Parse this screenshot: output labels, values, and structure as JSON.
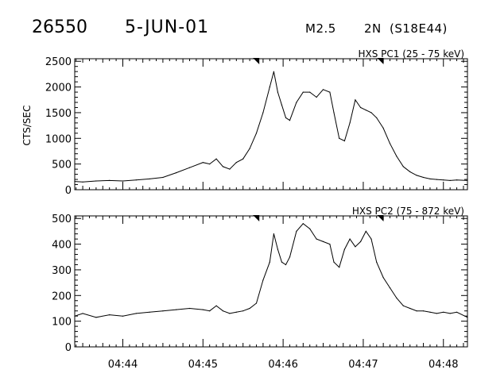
{
  "header": {
    "event_id": "26550",
    "date": "5-JUN-01",
    "flare_class": "M2.5",
    "optical_class": "2N",
    "location": "(S18E44)"
  },
  "chart_data": [
    {
      "type": "line",
      "title": "HXS PC1 (25 - 75 keV)",
      "ylabel": "CTS/SEC",
      "xlabel": "",
      "xlim": [
        "04:43:24",
        "04:48:18"
      ],
      "ylim": [
        0,
        2550
      ],
      "yticks": [
        0,
        500,
        1000,
        1500,
        2000,
        2500
      ],
      "xticks": [
        "04:44",
        "04:45",
        "04:46",
        "04:47",
        "04:48"
      ],
      "markers": [
        "04:45:41",
        "04:47:14"
      ],
      "grid": false,
      "series": [
        {
          "x": [
            "04:43:24",
            "04:43:30",
            "04:43:40",
            "04:43:50",
            "04:44:00",
            "04:44:10",
            "04:44:20",
            "04:44:30",
            "04:44:40",
            "04:44:50",
            "04:45:00",
            "04:45:05",
            "04:45:10",
            "04:45:15",
            "04:45:20",
            "04:45:25",
            "04:45:30",
            "04:45:35",
            "04:45:40",
            "04:45:45",
            "04:45:50",
            "04:45:53",
            "04:45:56",
            "04:45:59",
            "04:46:02",
            "04:46:05",
            "04:46:10",
            "04:46:15",
            "04:46:20",
            "04:46:25",
            "04:46:30",
            "04:46:35",
            "04:46:38",
            "04:46:42",
            "04:46:46",
            "04:46:50",
            "04:46:54",
            "04:46:58",
            "04:47:02",
            "04:47:06",
            "04:47:10",
            "04:47:15",
            "04:47:20",
            "04:47:25",
            "04:47:30",
            "04:47:35",
            "04:47:40",
            "04:47:45",
            "04:47:50",
            "04:47:55",
            "04:48:00",
            "04:48:05",
            "04:48:10",
            "04:48:18"
          ],
          "y": [
            160,
            150,
            170,
            180,
            170,
            190,
            210,
            240,
            330,
            430,
            530,
            500,
            600,
            450,
            400,
            530,
            600,
            800,
            1100,
            1500,
            2000,
            2300,
            1900,
            1650,
            1400,
            1350,
            1700,
            1900,
            1900,
            1800,
            1950,
            1900,
            1500,
            1000,
            950,
            1300,
            1750,
            1600,
            1550,
            1500,
            1400,
            1200,
            900,
            650,
            450,
            350,
            280,
            240,
            210,
            200,
            190,
            180,
            190,
            180
          ]
        }
      ]
    },
    {
      "type": "line",
      "title": "HXS PC2 (75 - 872 keV)",
      "ylabel": "",
      "xlabel": "",
      "xlim": [
        "04:43:24",
        "04:48:18"
      ],
      "ylim": [
        0,
        510
      ],
      "yticks": [
        0,
        100,
        200,
        300,
        400,
        500
      ],
      "xticks": [
        "04:44",
        "04:45",
        "04:46",
        "04:47",
        "04:48"
      ],
      "markers": [
        "04:45:41",
        "04:47:14"
      ],
      "grid": false,
      "series": [
        {
          "x": [
            "04:43:24",
            "04:43:30",
            "04:43:40",
            "04:43:50",
            "04:44:00",
            "04:44:10",
            "04:44:20",
            "04:44:30",
            "04:44:40",
            "04:44:50",
            "04:45:00",
            "04:45:05",
            "04:45:10",
            "04:45:15",
            "04:45:20",
            "04:45:25",
            "04:45:30",
            "04:45:35",
            "04:45:40",
            "04:45:45",
            "04:45:50",
            "04:45:53",
            "04:45:56",
            "04:45:59",
            "04:46:02",
            "04:46:05",
            "04:46:10",
            "04:46:15",
            "04:46:20",
            "04:46:25",
            "04:46:30",
            "04:46:35",
            "04:46:38",
            "04:46:42",
            "04:46:46",
            "04:46:50",
            "04:46:54",
            "04:46:58",
            "04:47:02",
            "04:47:06",
            "04:47:10",
            "04:47:15",
            "04:47:20",
            "04:47:25",
            "04:47:30",
            "04:47:35",
            "04:47:40",
            "04:47:45",
            "04:47:50",
            "04:47:55",
            "04:48:00",
            "04:48:05",
            "04:48:10",
            "04:48:18"
          ],
          "y": [
            120,
            130,
            115,
            125,
            120,
            130,
            135,
            140,
            145,
            150,
            145,
            140,
            160,
            140,
            130,
            135,
            140,
            150,
            170,
            260,
            330,
            440,
            380,
            330,
            320,
            350,
            450,
            480,
            460,
            420,
            410,
            400,
            330,
            310,
            380,
            420,
            390,
            410,
            450,
            420,
            330,
            270,
            230,
            190,
            160,
            150,
            140,
            140,
            135,
            130,
            135,
            130,
            135,
            115
          ]
        }
      ]
    }
  ]
}
